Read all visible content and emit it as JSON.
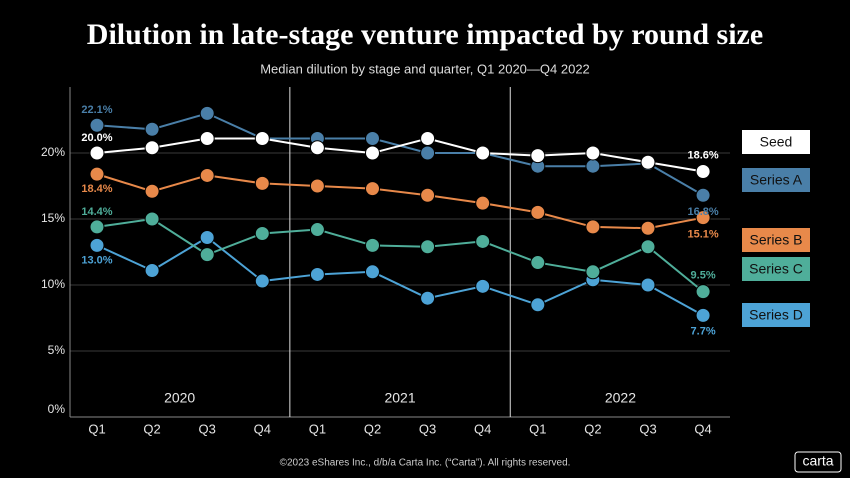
{
  "chart_data": {
    "type": "line",
    "title": "Dilution in late-stage venture impacted by round size",
    "subtitle": "Median dilution by stage and quarter, Q1 2020—Q4 2022",
    "footer": "©2023 eShares Inc., d/b/a Carta Inc. (“Carta”). All rights reserved.",
    "logo": "carta",
    "categories": [
      "Q1",
      "Q2",
      "Q3",
      "Q4",
      "Q1",
      "Q2",
      "Q3",
      "Q4",
      "Q1",
      "Q2",
      "Q3",
      "Q4"
    ],
    "groups": [
      "2020",
      "2021",
      "2022"
    ],
    "ylim": [
      0,
      25
    ],
    "yticks": [
      {
        "value": 0,
        "label": "0%"
      },
      {
        "value": 5,
        "label": "5%"
      },
      {
        "value": 10,
        "label": "10%"
      },
      {
        "value": 15,
        "label": "15%"
      },
      {
        "value": 20,
        "label": "20%"
      }
    ],
    "grid": true,
    "series": [
      {
        "name": "Seed",
        "color": "#ffffff",
        "values": [
          20.0,
          20.4,
          21.1,
          21.1,
          20.4,
          20.0,
          21.1,
          20.0,
          19.8,
          20.0,
          19.3,
          18.6
        ],
        "value_labels": [
          "20.0%",
          null,
          null,
          null,
          null,
          null,
          null,
          null,
          null,
          null,
          null,
          "18.6%"
        ]
      },
      {
        "name": "Series A",
        "color": "#4a7fa8",
        "values": [
          22.1,
          21.8,
          23.0,
          21.1,
          21.1,
          21.1,
          20.0,
          20.0,
          19.0,
          19.0,
          19.2,
          16.8
        ],
        "value_labels": [
          "22.1%",
          null,
          null,
          null,
          null,
          null,
          null,
          null,
          null,
          null,
          null,
          "16.8%"
        ]
      },
      {
        "name": "Series B",
        "color": "#e8894a",
        "values": [
          18.4,
          17.1,
          18.3,
          17.7,
          17.5,
          17.3,
          16.8,
          16.2,
          15.5,
          14.4,
          14.3,
          15.1
        ],
        "value_labels": [
          "18.4%",
          null,
          null,
          null,
          null,
          null,
          null,
          null,
          null,
          null,
          null,
          "15.1%"
        ]
      },
      {
        "name": "Series C",
        "color": "#4fae9a",
        "values": [
          14.4,
          15.0,
          12.3,
          13.9,
          14.2,
          13.0,
          12.9,
          13.3,
          11.7,
          11.0,
          12.9,
          9.5
        ],
        "value_labels": [
          "14.4%",
          null,
          null,
          null,
          null,
          null,
          null,
          null,
          null,
          null,
          null,
          "9.5%"
        ]
      },
      {
        "name": "Series D",
        "color": "#4da3d6",
        "values": [
          13.0,
          11.1,
          13.6,
          10.3,
          10.8,
          11.0,
          9.0,
          9.9,
          8.5,
          10.4,
          10.0,
          7.7
        ],
        "value_labels": [
          "13.0%",
          null,
          null,
          null,
          null,
          null,
          null,
          null,
          null,
          null,
          null,
          "7.7%"
        ]
      }
    ]
  }
}
